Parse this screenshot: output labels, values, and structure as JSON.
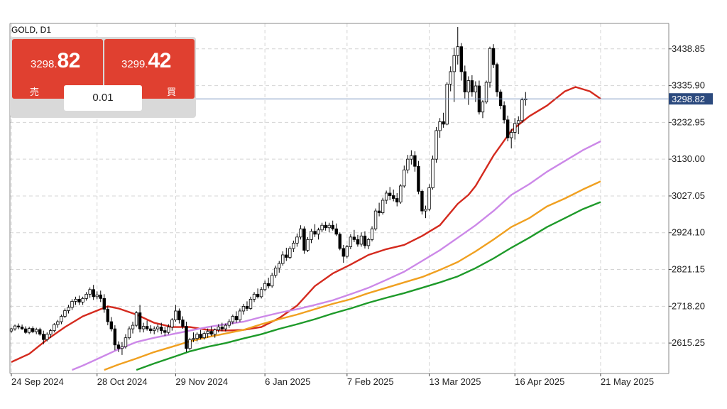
{
  "symbol_label": "GOLD, D1",
  "trade_panel": {
    "sell": {
      "price_small": "3298.",
      "price_big": "82",
      "label": "売"
    },
    "buy": {
      "price_small": "3299.",
      "price_big": "42",
      "label": "買"
    },
    "volume": "0.01"
  },
  "colors": {
    "bull_body": "#ffffff",
    "bear_body": "#000000",
    "wick": "#000000",
    "ma_red": "#d42a1e",
    "ma_purple": "#cc88e8",
    "ma_orange": "#f0a020",
    "ma_green": "#1e9a2a",
    "grid": "#d4d4d4",
    "bid_line": "#7d98c0",
    "bid_tag_bg": "#2c4a7e",
    "panel_red": "#e04030"
  },
  "chart_data": {
    "type": "candlestick",
    "title": "GOLD, D1",
    "y_ticks": [
      "3438.85",
      "3335.90",
      "3232.95",
      "3130.00",
      "3027.05",
      "2924.10",
      "2821.15",
      "2718.20",
      "2615.25"
    ],
    "ylim": [
      2530,
      3510
    ],
    "x_ticks": [
      "24 Sep 2024",
      "28 Oct 2024",
      "29 Nov 2024",
      "6 Jan 2025",
      "7 Feb 2025",
      "13 Mar 2025",
      "16 Apr 2025",
      "21 May 2025"
    ],
    "x_tick_index": [
      0,
      24,
      46,
      71,
      94,
      117,
      141,
      165
    ],
    "current_price": "3298.82",
    "grid": true,
    "candles": [
      [
        2649,
        2658,
        2644,
        2655
      ],
      [
        2655,
        2667,
        2650,
        2663
      ],
      [
        2663,
        2670,
        2654,
        2660
      ],
      [
        2660,
        2667,
        2652,
        2655
      ],
      [
        2655,
        2662,
        2641,
        2645
      ],
      [
        2645,
        2661,
        2640,
        2656
      ],
      [
        2656,
        2662,
        2643,
        2647
      ],
      [
        2647,
        2658,
        2640,
        2653
      ],
      [
        2653,
        2658,
        2636,
        2640
      ],
      [
        2640,
        2650,
        2612,
        2625
      ],
      [
        2625,
        2645,
        2620,
        2640
      ],
      [
        2640,
        2655,
        2630,
        2650
      ],
      [
        2650,
        2671,
        2645,
        2667
      ],
      [
        2667,
        2680,
        2658,
        2675
      ],
      [
        2675,
        2695,
        2668,
        2690
      ],
      [
        2690,
        2712,
        2685,
        2706
      ],
      [
        2706,
        2722,
        2698,
        2715
      ],
      [
        2715,
        2738,
        2708,
        2732
      ],
      [
        2732,
        2745,
        2722,
        2738
      ],
      [
        2738,
        2748,
        2722,
        2730
      ],
      [
        2730,
        2745,
        2722,
        2740
      ],
      [
        2740,
        2758,
        2734,
        2752
      ],
      [
        2752,
        2771,
        2742,
        2765
      ],
      [
        2765,
        2778,
        2736,
        2745
      ],
      [
        2745,
        2760,
        2738,
        2750
      ],
      [
        2750,
        2762,
        2730,
        2740
      ],
      [
        2740,
        2752,
        2700,
        2710
      ],
      [
        2710,
        2718,
        2665,
        2675
      ],
      [
        2675,
        2688,
        2648,
        2655
      ],
      [
        2655,
        2665,
        2595,
        2610
      ],
      [
        2610,
        2620,
        2590,
        2600
      ],
      [
        2600,
        2618,
        2582,
        2605
      ],
      [
        2605,
        2640,
        2600,
        2630
      ],
      [
        2630,
        2662,
        2625,
        2655
      ],
      [
        2655,
        2675,
        2642,
        2665
      ],
      [
        2665,
        2705,
        2660,
        2700
      ],
      [
        2700,
        2722,
        2645,
        2655
      ],
      [
        2655,
        2672,
        2645,
        2662
      ],
      [
        2662,
        2678,
        2650,
        2655
      ],
      [
        2655,
        2665,
        2642,
        2650
      ],
      [
        2650,
        2662,
        2640,
        2655
      ],
      [
        2655,
        2668,
        2645,
        2660
      ],
      [
        2660,
        2672,
        2640,
        2650
      ],
      [
        2650,
        2660,
        2635,
        2645
      ],
      [
        2645,
        2668,
        2640,
        2660
      ],
      [
        2660,
        2685,
        2650,
        2680
      ],
      [
        2680,
        2722,
        2675,
        2705
      ],
      [
        2705,
        2712,
        2670,
        2680
      ],
      [
        2680,
        2690,
        2655,
        2662
      ],
      [
        2662,
        2675,
        2590,
        2600
      ],
      [
        2600,
        2630,
        2595,
        2625
      ],
      [
        2625,
        2645,
        2618,
        2628
      ],
      [
        2628,
        2645,
        2620,
        2640
      ],
      [
        2640,
        2652,
        2625,
        2630
      ],
      [
        2630,
        2648,
        2625,
        2642
      ],
      [
        2642,
        2656,
        2630,
        2648
      ],
      [
        2648,
        2662,
        2635,
        2640
      ],
      [
        2640,
        2656,
        2630,
        2652
      ],
      [
        2652,
        2668,
        2645,
        2660
      ],
      [
        2660,
        2672,
        2648,
        2655
      ],
      [
        2655,
        2670,
        2648,
        2665
      ],
      [
        2665,
        2682,
        2658,
        2675
      ],
      [
        2675,
        2695,
        2668,
        2690
      ],
      [
        2690,
        2704,
        2672,
        2680
      ],
      [
        2680,
        2712,
        2675,
        2705
      ],
      [
        2705,
        2725,
        2695,
        2718
      ],
      [
        2718,
        2732,
        2705,
        2712
      ],
      [
        2712,
        2745,
        2708,
        2738
      ],
      [
        2738,
        2758,
        2730,
        2752
      ],
      [
        2752,
        2768,
        2740,
        2745
      ],
      [
        2745,
        2772,
        2740,
        2765
      ],
      [
        2765,
        2790,
        2760,
        2782
      ],
      [
        2782,
        2798,
        2768,
        2775
      ],
      [
        2775,
        2812,
        2770,
        2805
      ],
      [
        2805,
        2832,
        2798,
        2825
      ],
      [
        2825,
        2845,
        2812,
        2838
      ],
      [
        2838,
        2872,
        2832,
        2862
      ],
      [
        2862,
        2882,
        2845,
        2855
      ],
      [
        2855,
        2886,
        2850,
        2880
      ],
      [
        2880,
        2902,
        2870,
        2895
      ],
      [
        2895,
        2922,
        2885,
        2912
      ],
      [
        2912,
        2945,
        2905,
        2935
      ],
      [
        2935,
        2942,
        2865,
        2875
      ],
      [
        2875,
        2912,
        2870,
        2905
      ],
      [
        2905,
        2935,
        2895,
        2928
      ],
      [
        2928,
        2948,
        2912,
        2920
      ],
      [
        2920,
        2938,
        2905,
        2932
      ],
      [
        2932,
        2952,
        2925,
        2945
      ],
      [
        2945,
        2955,
        2930,
        2938
      ],
      [
        2938,
        2952,
        2925,
        2945
      ],
      [
        2945,
        2958,
        2930,
        2935
      ],
      [
        2935,
        2950,
        2915,
        2920
      ],
      [
        2920,
        2925,
        2875,
        2880
      ],
      [
        2880,
        2890,
        2840,
        2858
      ],
      [
        2858,
        2890,
        2852,
        2885
      ],
      [
        2885,
        2920,
        2878,
        2912
      ],
      [
        2912,
        2932,
        2898,
        2905
      ],
      [
        2905,
        2918,
        2885,
        2892
      ],
      [
        2892,
        2925,
        2885,
        2915
      ],
      [
        2915,
        2928,
        2880,
        2888
      ],
      [
        2888,
        2910,
        2878,
        2905
      ],
      [
        2905,
        2942,
        2900,
        2935
      ],
      [
        2935,
        2992,
        2930,
        2985
      ],
      [
        2985,
        3008,
        2970,
        2980
      ],
      [
        2980,
        3022,
        2975,
        3015
      ],
      [
        3015,
        3042,
        3005,
        3035
      ],
      [
        3035,
        3052,
        3015,
        3028
      ],
      [
        3028,
        3045,
        3012,
        3020
      ],
      [
        3020,
        3035,
        2998,
        3010
      ],
      [
        3010,
        3060,
        3005,
        3055
      ],
      [
        3055,
        3112,
        3050,
        3100
      ],
      [
        3100,
        3142,
        3090,
        3130
      ],
      [
        3130,
        3155,
        3115,
        3140
      ],
      [
        3140,
        3152,
        3095,
        3110
      ],
      [
        3110,
        3125,
        3032,
        3040
      ],
      [
        3040,
        3045,
        2975,
        2985
      ],
      [
        2985,
        3000,
        2965,
        2990
      ],
      [
        2990,
        3060,
        2985,
        3050
      ],
      [
        3050,
        3140,
        3045,
        3130
      ],
      [
        3130,
        3220,
        3120,
        3210
      ],
      [
        3210,
        3245,
        3190,
        3235
      ],
      [
        3235,
        3260,
        3218,
        3228
      ],
      [
        3228,
        3345,
        3225,
        3340
      ],
      [
        3340,
        3390,
        3320,
        3375
      ],
      [
        3375,
        3442,
        3290,
        3420
      ],
      [
        3420,
        3500,
        3395,
        3445
      ],
      [
        3445,
        3455,
        3350,
        3375
      ],
      [
        3375,
        3392,
        3300,
        3318
      ],
      [
        3318,
        3362,
        3282,
        3350
      ],
      [
        3350,
        3365,
        3305,
        3318
      ],
      [
        3318,
        3348,
        3290,
        3335
      ],
      [
        3335,
        3350,
        3255,
        3262
      ],
      [
        3262,
        3295,
        3245,
        3290
      ],
      [
        3290,
        3350,
        3285,
        3345
      ],
      [
        3345,
        3445,
        3330,
        3440
      ],
      [
        3440,
        3452,
        3385,
        3395
      ],
      [
        3395,
        3400,
        3305,
        3318
      ],
      [
        3318,
        3325,
        3270,
        3280
      ],
      [
        3280,
        3292,
        3230,
        3240
      ],
      [
        3240,
        3252,
        3180,
        3190
      ],
      [
        3190,
        3215,
        3160,
        3205
      ],
      [
        3205,
        3245,
        3185,
        3230
      ],
      [
        3230,
        3250,
        3200,
        3238
      ],
      [
        3238,
        3302,
        3232,
        3296
      ],
      [
        3296,
        3318,
        3280,
        3299
      ]
    ],
    "series": [
      {
        "name": "",
        "color": "#d42a1e",
        "points": [
          [
            0,
            2562
          ],
          [
            5,
            2585
          ],
          [
            10,
            2625
          ],
          [
            15,
            2660
          ],
          [
            20,
            2690
          ],
          [
            25,
            2710
          ],
          [
            27,
            2718
          ],
          [
            30,
            2712
          ],
          [
            35,
            2695
          ],
          [
            40,
            2672
          ],
          [
            45,
            2660
          ],
          [
            50,
            2660
          ],
          [
            55,
            2652
          ],
          [
            60,
            2650
          ],
          [
            65,
            2652
          ],
          [
            70,
            2660
          ],
          [
            75,
            2685
          ],
          [
            80,
            2720
          ],
          [
            85,
            2775
          ],
          [
            90,
            2810
          ],
          [
            95,
            2835
          ],
          [
            100,
            2862
          ],
          [
            105,
            2878
          ],
          [
            110,
            2890
          ],
          [
            115,
            2915
          ],
          [
            120,
            2945
          ],
          [
            125,
            3005
          ],
          [
            128,
            3030
          ],
          [
            130,
            3055
          ],
          [
            135,
            3140
          ],
          [
            140,
            3210
          ],
          [
            145,
            3250
          ],
          [
            150,
            3280
          ],
          [
            155,
            3320
          ],
          [
            158,
            3332
          ],
          [
            162,
            3320
          ],
          [
            165,
            3299
          ]
        ]
      },
      {
        "name": "",
        "color": "#cc88e8",
        "points": [
          [
            17,
            2540
          ],
          [
            20,
            2552
          ],
          [
            25,
            2575
          ],
          [
            30,
            2598
          ],
          [
            35,
            2618
          ],
          [
            40,
            2630
          ],
          [
            45,
            2640
          ],
          [
            50,
            2650
          ],
          [
            55,
            2660
          ],
          [
            60,
            2668
          ],
          [
            65,
            2675
          ],
          [
            70,
            2688
          ],
          [
            75,
            2700
          ],
          [
            80,
            2710
          ],
          [
            85,
            2722
          ],
          [
            90,
            2735
          ],
          [
            95,
            2752
          ],
          [
            100,
            2770
          ],
          [
            105,
            2792
          ],
          [
            110,
            2815
          ],
          [
            115,
            2845
          ],
          [
            120,
            2875
          ],
          [
            125,
            2910
          ],
          [
            130,
            2945
          ],
          [
            135,
            2985
          ],
          [
            140,
            3030
          ],
          [
            145,
            3060
          ],
          [
            150,
            3095
          ],
          [
            155,
            3125
          ],
          [
            160,
            3155
          ],
          [
            165,
            3180
          ]
        ]
      },
      {
        "name": "",
        "color": "#f0a020",
        "points": [
          [
            26,
            2540
          ],
          [
            30,
            2555
          ],
          [
            35,
            2572
          ],
          [
            40,
            2590
          ],
          [
            45,
            2605
          ],
          [
            50,
            2620
          ],
          [
            55,
            2632
          ],
          [
            60,
            2642
          ],
          [
            65,
            2652
          ],
          [
            70,
            2668
          ],
          [
            75,
            2682
          ],
          [
            80,
            2695
          ],
          [
            85,
            2710
          ],
          [
            90,
            2725
          ],
          [
            95,
            2738
          ],
          [
            100,
            2755
          ],
          [
            105,
            2770
          ],
          [
            110,
            2785
          ],
          [
            115,
            2800
          ],
          [
            120,
            2820
          ],
          [
            125,
            2842
          ],
          [
            130,
            2872
          ],
          [
            135,
            2905
          ],
          [
            140,
            2940
          ],
          [
            145,
            2965
          ],
          [
            150,
            2998
          ],
          [
            155,
            3020
          ],
          [
            160,
            3045
          ],
          [
            165,
            3068
          ]
        ]
      },
      {
        "name": "",
        "color": "#1e9a2a",
        "points": [
          [
            35,
            2540
          ],
          [
            40,
            2558
          ],
          [
            45,
            2575
          ],
          [
            50,
            2592
          ],
          [
            55,
            2605
          ],
          [
            60,
            2615
          ],
          [
            65,
            2628
          ],
          [
            70,
            2640
          ],
          [
            75,
            2655
          ],
          [
            80,
            2668
          ],
          [
            85,
            2682
          ],
          [
            90,
            2698
          ],
          [
            95,
            2712
          ],
          [
            100,
            2728
          ],
          [
            105,
            2742
          ],
          [
            110,
            2755
          ],
          [
            115,
            2770
          ],
          [
            120,
            2785
          ],
          [
            125,
            2802
          ],
          [
            130,
            2825
          ],
          [
            135,
            2852
          ],
          [
            140,
            2882
          ],
          [
            145,
            2910
          ],
          [
            150,
            2940
          ],
          [
            155,
            2965
          ],
          [
            160,
            2990
          ],
          [
            165,
            3010
          ]
        ]
      }
    ]
  }
}
